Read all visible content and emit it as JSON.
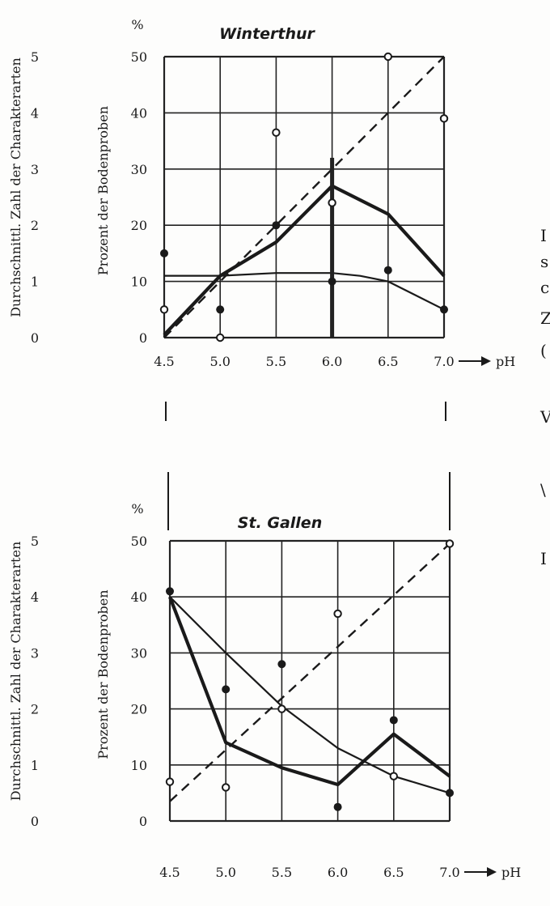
{
  "chart_data": [
    {
      "type": "line",
      "title": "Winterthur",
      "unit": "%",
      "ylabel_left": "Durchschnittl. Zahl der Charakterarten",
      "ylabel_right": "Prozent der Bodenproben",
      "xlabel": "pH",
      "x_ticks": [
        "4.5",
        "5.0",
        "5.5",
        "6.0",
        "6.5",
        "7.0"
      ],
      "left_ticks": [
        "0",
        "1",
        "2",
        "3",
        "4",
        "5"
      ],
      "pct_ticks": [
        "0",
        "10",
        "20",
        "30",
        "40",
        "50"
      ],
      "xlim": [
        4.5,
        7.0
      ],
      "ylim": [
        0,
        50
      ],
      "grid": true,
      "series": [
        {
          "style": "dashed",
          "x": [
            4.5,
            7.0
          ],
          "y": [
            0,
            50
          ]
        },
        {
          "style": "thick",
          "x": [
            4.5,
            5.0,
            5.5,
            6.0,
            6.5,
            7.0
          ],
          "y": [
            0.5,
            11,
            17,
            27,
            22,
            11
          ]
        },
        {
          "style": "thin",
          "x": [
            4.5,
            5.0,
            5.5,
            6.0,
            6.25,
            6.5,
            7.0
          ],
          "y": [
            11,
            11,
            11.5,
            11.5,
            11,
            10,
            5
          ]
        },
        {
          "style": "bar",
          "x": [
            6.0
          ],
          "y": [
            32
          ]
        }
      ],
      "points_filled": {
        "x": [
          4.5,
          5.0,
          5.5,
          6.0,
          6.5,
          7.0
        ],
        "y": [
          15,
          5,
          20,
          10,
          12,
          5
        ]
      },
      "points_open": {
        "x": [
          4.5,
          5.0,
          5.5,
          6.0,
          6.5,
          7.0
        ],
        "y": [
          5,
          0,
          36.5,
          24,
          50,
          39
        ]
      }
    },
    {
      "type": "line",
      "title": "St. Gallen",
      "unit": "%",
      "ylabel_left": "Durchschnittl. Zahl der Charakterarten",
      "ylabel_right": "Prozent der Bodenproben",
      "xlabel": "pH",
      "x_ticks": [
        "4.5",
        "5.0",
        "5.5",
        "6.0",
        "6.5",
        "7.0"
      ],
      "left_ticks": [
        "0",
        "1",
        "2",
        "3",
        "4",
        "5"
      ],
      "pct_ticks": [
        "0",
        "10",
        "20",
        "30",
        "40",
        "50"
      ],
      "xlim": [
        4.5,
        7.0
      ],
      "ylim": [
        0,
        50
      ],
      "grid": true,
      "series": [
        {
          "style": "dashed",
          "x": [
            4.5,
            7.0
          ],
          "y": [
            3.5,
            49.5
          ]
        },
        {
          "style": "thick",
          "x": [
            4.5,
            5.0,
            5.5,
            6.0,
            6.5,
            7.0
          ],
          "y": [
            40,
            14,
            9.5,
            6.5,
            15.5,
            8
          ]
        },
        {
          "style": "thin",
          "x": [
            4.5,
            5.0,
            5.5,
            6.0,
            6.5,
            7.0
          ],
          "y": [
            40,
            30,
            20.5,
            13,
            8,
            5
          ]
        }
      ],
      "points_filled": {
        "x": [
          4.5,
          5.0,
          5.5,
          6.0,
          6.5,
          7.0
        ],
        "y": [
          41,
          23.5,
          28,
          2.5,
          18,
          5
        ]
      },
      "points_open": {
        "x": [
          4.5,
          5.0,
          5.5,
          6.0,
          6.5,
          7.0
        ],
        "y": [
          7,
          6,
          20,
          37,
          8,
          49.5
        ]
      }
    }
  ],
  "right_edge_glyphs": [
    "I",
    "s",
    "c",
    "Z",
    "(",
    "V",
    "\\",
    "I"
  ]
}
